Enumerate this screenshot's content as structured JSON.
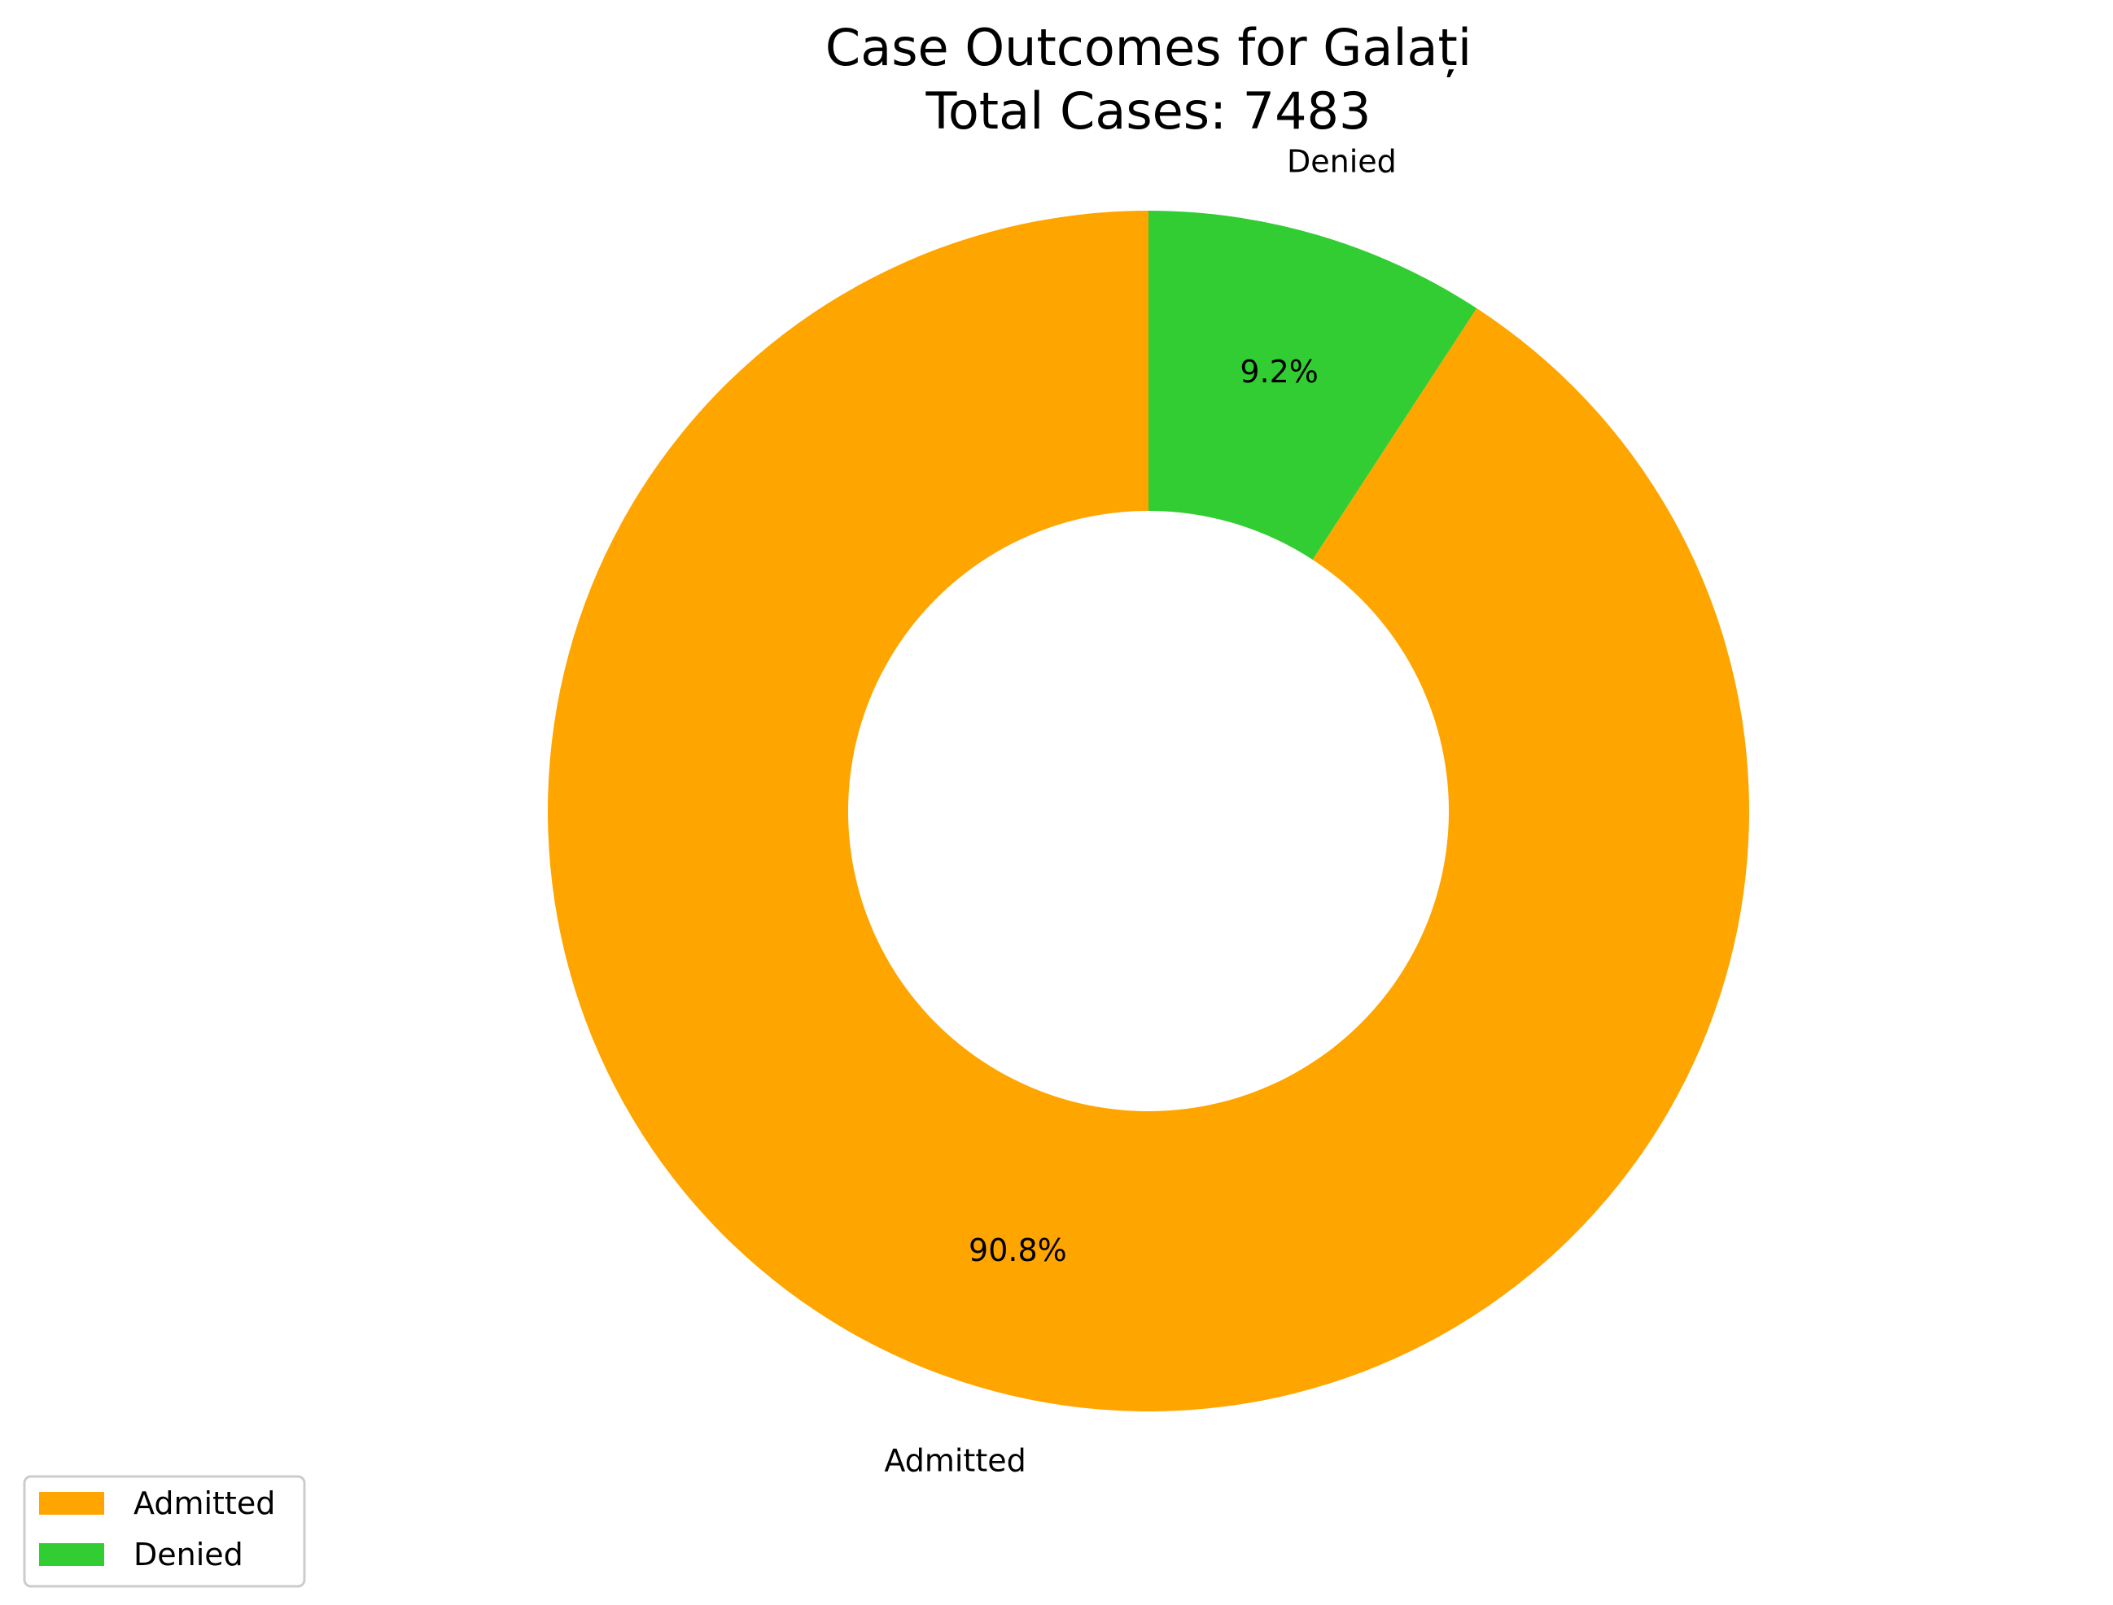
{
  "chart_data": {
    "type": "pie",
    "variant": "donut",
    "title": "Case Outcomes for Galați",
    "subtitle": "Total Cases: 7483",
    "slices": [
      {
        "label": "Admitted",
        "percent_label": "90.8%",
        "value": 90.8,
        "color": "#ffa500"
      },
      {
        "label": "Denied",
        "percent_label": "9.2%",
        "value": 9.2,
        "color": "#32cd32"
      }
    ],
    "start_angle_deg": 90,
    "direction": "counterclockwise",
    "legend": {
      "position": "lower-left",
      "entries": [
        "Admitted",
        "Denied"
      ]
    }
  }
}
